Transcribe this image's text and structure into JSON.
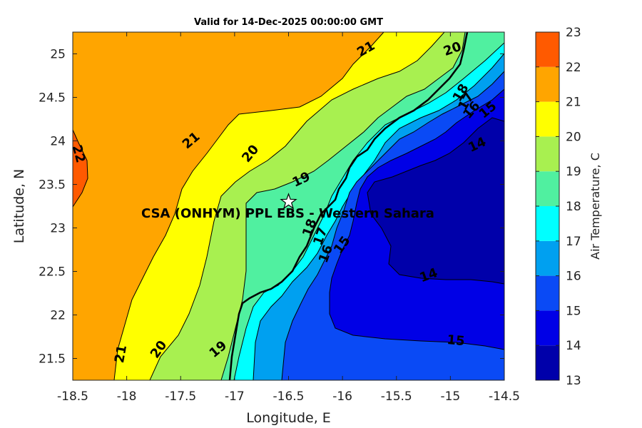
{
  "title": "Valid for 14-Dec-2025 00:00:00 GMT",
  "axes": {
    "xlabel": "Longitude, E",
    "ylabel": "Latitude, N",
    "xlim": [
      -18.5,
      -14.5
    ],
    "ylim": [
      21.25,
      25.25
    ],
    "xticks": [
      "-18.5",
      "-18",
      "-17.5",
      "-17",
      "-16.5",
      "-16",
      "-15.5",
      "-15",
      "-14.5"
    ],
    "yticks": [
      "21.5",
      "22",
      "22.5",
      "23",
      "23.5",
      "24",
      "24.5",
      "25"
    ]
  },
  "site": {
    "label": "CSA (ONHYM) PPL EBS - Western Sahara",
    "lon": -16.5,
    "lat": 23.3,
    "marker": "star-icon"
  },
  "colorbar": {
    "label": "Air Temperature, C",
    "ticks": [
      "13",
      "14",
      "15",
      "16",
      "17",
      "18",
      "19",
      "20",
      "21",
      "22",
      "23"
    ],
    "colors": [
      "#0000aa",
      "#0000e6",
      "#0a4af5",
      "#00a0f0",
      "#00ffff",
      "#50f0a0",
      "#a8f050",
      "#ffff00",
      "#ffa500",
      "#ff5a00",
      "#ff0000"
    ]
  },
  "contour_labels": [
    {
      "text": "22",
      "lon": -18.45,
      "lat": 23.85,
      "rot": 75
    },
    {
      "text": "21",
      "lon": -15.78,
      "lat": 25.05,
      "rot": -30
    },
    {
      "text": "21",
      "lon": -17.4,
      "lat": 24.0,
      "rot": -40
    },
    {
      "text": "21",
      "lon": -18.05,
      "lat": 21.55,
      "rot": -80
    },
    {
      "text": "20",
      "lon": -14.98,
      "lat": 25.05,
      "rot": -20
    },
    {
      "text": "20",
      "lon": -16.85,
      "lat": 23.85,
      "rot": -50
    },
    {
      "text": "20",
      "lon": -17.7,
      "lat": 21.6,
      "rot": -55
    },
    {
      "text": "19",
      "lon": -16.38,
      "lat": 23.55,
      "rot": -25
    },
    {
      "text": "19",
      "lon": -17.15,
      "lat": 21.6,
      "rot": -40
    },
    {
      "text": "18",
      "lon": -14.9,
      "lat": 24.55,
      "rot": -60
    },
    {
      "text": "18",
      "lon": -16.3,
      "lat": 23.0,
      "rot": -70
    },
    {
      "text": "17",
      "lon": -14.85,
      "lat": 24.45,
      "rot": -60
    },
    {
      "text": "17",
      "lon": -16.2,
      "lat": 22.9,
      "rot": -70
    },
    {
      "text": "16",
      "lon": -14.8,
      "lat": 24.35,
      "rot": -50
    },
    {
      "text": "16",
      "lon": -16.15,
      "lat": 22.7,
      "rot": -70
    },
    {
      "text": "15",
      "lon": -14.65,
      "lat": 24.35,
      "rot": -40
    },
    {
      "text": "15",
      "lon": -16.0,
      "lat": 22.8,
      "rot": -55
    },
    {
      "text": "15",
      "lon": -14.95,
      "lat": 21.7,
      "rot": 5
    },
    {
      "text": "14",
      "lon": -14.75,
      "lat": 23.95,
      "rot": -25
    },
    {
      "text": "14",
      "lon": -15.2,
      "lat": 22.45,
      "rot": -20
    }
  ]
}
